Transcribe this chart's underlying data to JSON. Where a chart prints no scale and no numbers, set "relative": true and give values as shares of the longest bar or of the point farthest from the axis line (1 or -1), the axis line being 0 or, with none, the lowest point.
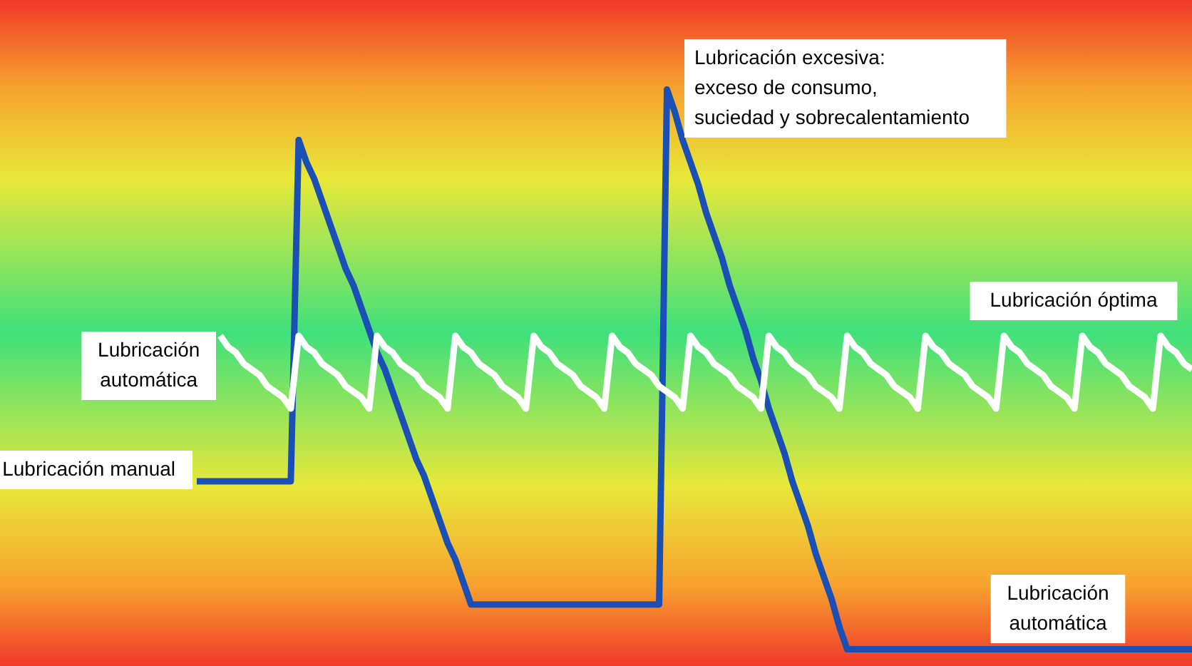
{
  "chart_data": {
    "type": "line",
    "relative": true,
    "categories": [
      null,
      null,
      null,
      null,
      null,
      null,
      null,
      null,
      null,
      null,
      null,
      null,
      null,
      null,
      null,
      null,
      null,
      null,
      null,
      null,
      null,
      null,
      null,
      null,
      null,
      null,
      null,
      null,
      null,
      null,
      null,
      null,
      null,
      null,
      null,
      null,
      null,
      null,
      null,
      null,
      null,
      null,
      null,
      null,
      null,
      null,
      null,
      null,
      null,
      null,
      null,
      null,
      null,
      null,
      null,
      null,
      null,
      null,
      null,
      null,
      null,
      null,
      null,
      null,
      null,
      null,
      null,
      null,
      null,
      null,
      null,
      null,
      null,
      null,
      null,
      null,
      null,
      null,
      null,
      null,
      null,
      null,
      null,
      null,
      null,
      null,
      null,
      null,
      null,
      null,
      null,
      null,
      null,
      null,
      null,
      null,
      null,
      null,
      null,
      null,
      null,
      null,
      null,
      null,
      null,
      null,
      null,
      null,
      null,
      null,
      null,
      null,
      null,
      null,
      null,
      null,
      null,
      null,
      null,
      null,
      null,
      null,
      null,
      null,
      null,
      null,
      null,
      null
    ],
    "series": [
      {
        "name": "Lubricación manual",
        "color": "#1a4fb5",
        "values": [
          0.3,
          0.3,
          0.3,
          0.3,
          0.3,
          0.3,
          0.3,
          0.3,
          0.3,
          0.3,
          0.3,
          0.3,
          0.3,
          0.91,
          0.87,
          0.84,
          0.8,
          0.76,
          0.72,
          0.68,
          0.65,
          0.61,
          0.57,
          0.53,
          0.5,
          0.46,
          0.42,
          0.38,
          0.34,
          0.31,
          0.27,
          0.23,
          0.19,
          0.16,
          0.12,
          0.08,
          0.08,
          0.08,
          0.08,
          0.08,
          0.08,
          0.08,
          0.08,
          0.08,
          0.08,
          0.08,
          0.08,
          0.08,
          0.08,
          0.08,
          0.08,
          0.08,
          0.08,
          0.08,
          0.08,
          0.08,
          0.08,
          0.08,
          0.08,
          0.08,
          1.0,
          0.96,
          0.91,
          0.87,
          0.83,
          0.78,
          0.74,
          0.7,
          0.65,
          0.61,
          0.57,
          0.52,
          0.48,
          0.43,
          0.39,
          0.35,
          0.3,
          0.26,
          0.22,
          0.17,
          0.13,
          0.09,
          0.04,
          0,
          0,
          0,
          0,
          0,
          0,
          0,
          0,
          0,
          0,
          0,
          0,
          0,
          0,
          0,
          0,
          0,
          0,
          0,
          0,
          0,
          0,
          0,
          0,
          0,
          0,
          0,
          0,
          0,
          0,
          0,
          0,
          0,
          0,
          0,
          0,
          0,
          0,
          0,
          0,
          0,
          0,
          0,
          0,
          0
        ]
      },
      {
        "name": "Lubricación\nautomática",
        "color": "#ffffff",
        "values": [
          null,
          null,
          null,
          0.56,
          0.54,
          0.53,
          0.51,
          0.5,
          0.49,
          0.47,
          0.46,
          0.45,
          0.43,
          0.56,
          0.54,
          0.53,
          0.51,
          0.5,
          0.49,
          0.47,
          0.46,
          0.45,
          0.43,
          0.56,
          0.54,
          0.53,
          0.51,
          0.5,
          0.49,
          0.47,
          0.46,
          0.45,
          0.43,
          0.56,
          0.54,
          0.53,
          0.51,
          0.5,
          0.49,
          0.47,
          0.46,
          0.45,
          0.43,
          0.56,
          0.54,
          0.53,
          0.51,
          0.5,
          0.49,
          0.47,
          0.46,
          0.45,
          0.43,
          0.56,
          0.54,
          0.53,
          0.51,
          0.5,
          0.49,
          0.47,
          0.46,
          0.45,
          0.43,
          0.56,
          0.54,
          0.53,
          0.51,
          0.5,
          0.49,
          0.47,
          0.46,
          0.45,
          0.43,
          0.56,
          0.54,
          0.53,
          0.51,
          0.5,
          0.49,
          0.47,
          0.46,
          0.45,
          0.43,
          0.56,
          0.54,
          0.53,
          0.51,
          0.5,
          0.49,
          0.47,
          0.46,
          0.45,
          0.43,
          0.56,
          0.54,
          0.53,
          0.51,
          0.5,
          0.49,
          0.47,
          0.46,
          0.45,
          0.43,
          0.56,
          0.54,
          0.53,
          0.51,
          0.5,
          0.49,
          0.47,
          0.46,
          0.45,
          0.43,
          0.56,
          0.54,
          0.53,
          0.51,
          0.5,
          0.49,
          0.47,
          0.46,
          0.45,
          0.43,
          0.56,
          0.54,
          0.53,
          0.51,
          0.5
        ]
      }
    ],
    "annotations": [
      "Lubricación excesiva:\nexceso de consumo,\nsuciedad y sobrecalentamiento",
      "Lubricación óptima",
      "Lubricación\nautomática"
    ]
  }
}
